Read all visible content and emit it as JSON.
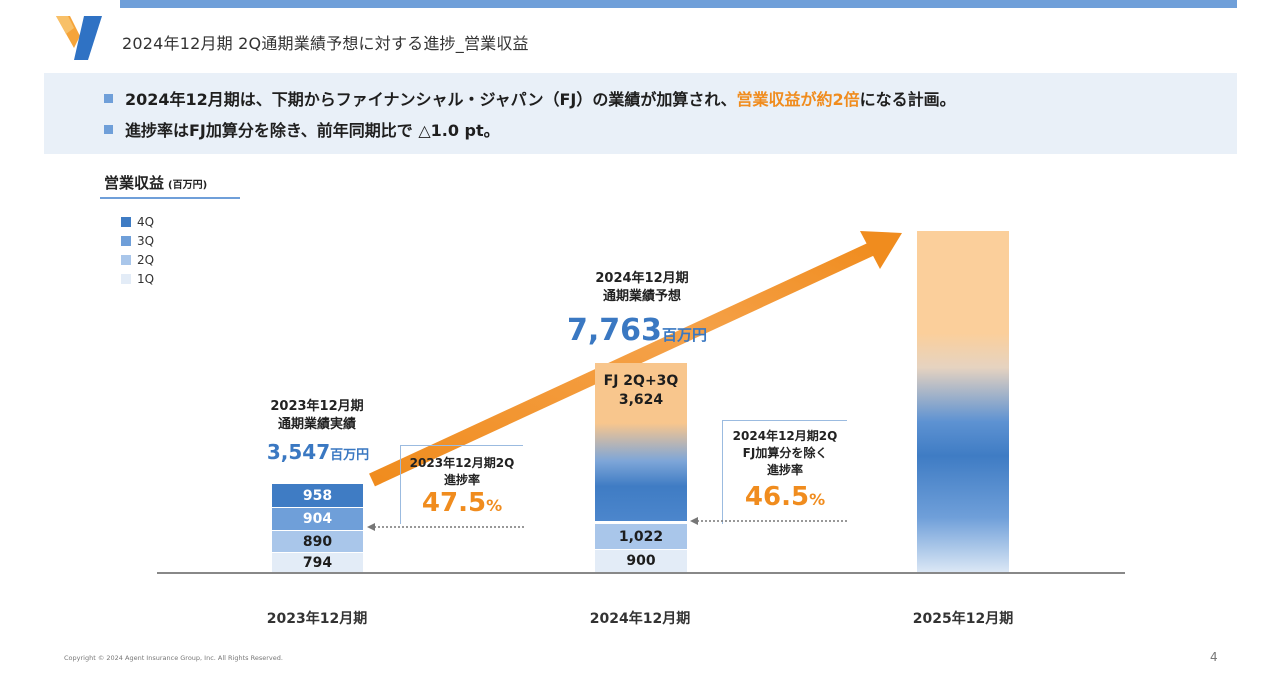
{
  "header": {
    "title": "2024年12月期 2Q通期業績予想に対する進捗_営業収益"
  },
  "banner": {
    "bullet1_pre": "2024年12月期は、下期からファイナンシャル・ジャパン（FJ）の業績が加算され、",
    "bullet1_hl": "営業収益が約2倍",
    "bullet1_post": "になる計画。",
    "bullet2": "進捗率はFJ加算分を除き、前年同期比で △1.0 pt。"
  },
  "chart_data": {
    "type": "bar",
    "title": "営業収益",
    "unit": "(百万円)",
    "categories": [
      "2023年12月期",
      "2024年12月期",
      "2025年12月期"
    ],
    "series": [
      {
        "name": "1Q",
        "values": [
          794,
          900,
          null
        ]
      },
      {
        "name": "2Q",
        "values": [
          890,
          1022,
          null
        ]
      },
      {
        "name": "3Q",
        "values": [
          904,
          null,
          null
        ]
      },
      {
        "name": "4Q",
        "values": [
          958,
          null,
          null
        ]
      }
    ],
    "fj_2q_3q": {
      "label": "FJ 2Q+3Q",
      "value": 3624
    },
    "segment_labels": {
      "y2023": [
        "794",
        "890",
        "904",
        "958"
      ],
      "y2024": [
        "900",
        "1,022"
      ],
      "fj_value": "3,624"
    },
    "legend": [
      "4Q",
      "3Q",
      "2Q",
      "1Q"
    ],
    "legend_position": "top-left",
    "annotations": {
      "fy2023_header": [
        "2023年12月期",
        "通期業績実績"
      ],
      "fy2023_total": "3,547",
      "fy2024_header": [
        "2024年12月期",
        "通期業績予想"
      ],
      "fy2024_total": "7,763",
      "unit_label": "百万円",
      "progress_2023": {
        "label": [
          "2023年12月期2Q",
          "進捗率"
        ],
        "value": "47.5",
        "unit": "%"
      },
      "progress_2024": {
        "label": [
          "2024年12月期2Q",
          "FJ加算分を除く",
          "進捗率"
        ],
        "value": "46.5",
        "unit": "%"
      }
    }
  },
  "footer": {
    "copyright": "Copyright © 2024 Agent Insurance Group, Inc. All Rights Reserved.",
    "page": "4"
  },
  "colors": {
    "accent": "#6f9fd9",
    "orange": "#f08c1e",
    "q4": "#3f7cc4",
    "q3": "#6f9fd9",
    "q2": "#a9c6ea",
    "q1": "#e3ecf7",
    "fj": "#f8c68d"
  }
}
